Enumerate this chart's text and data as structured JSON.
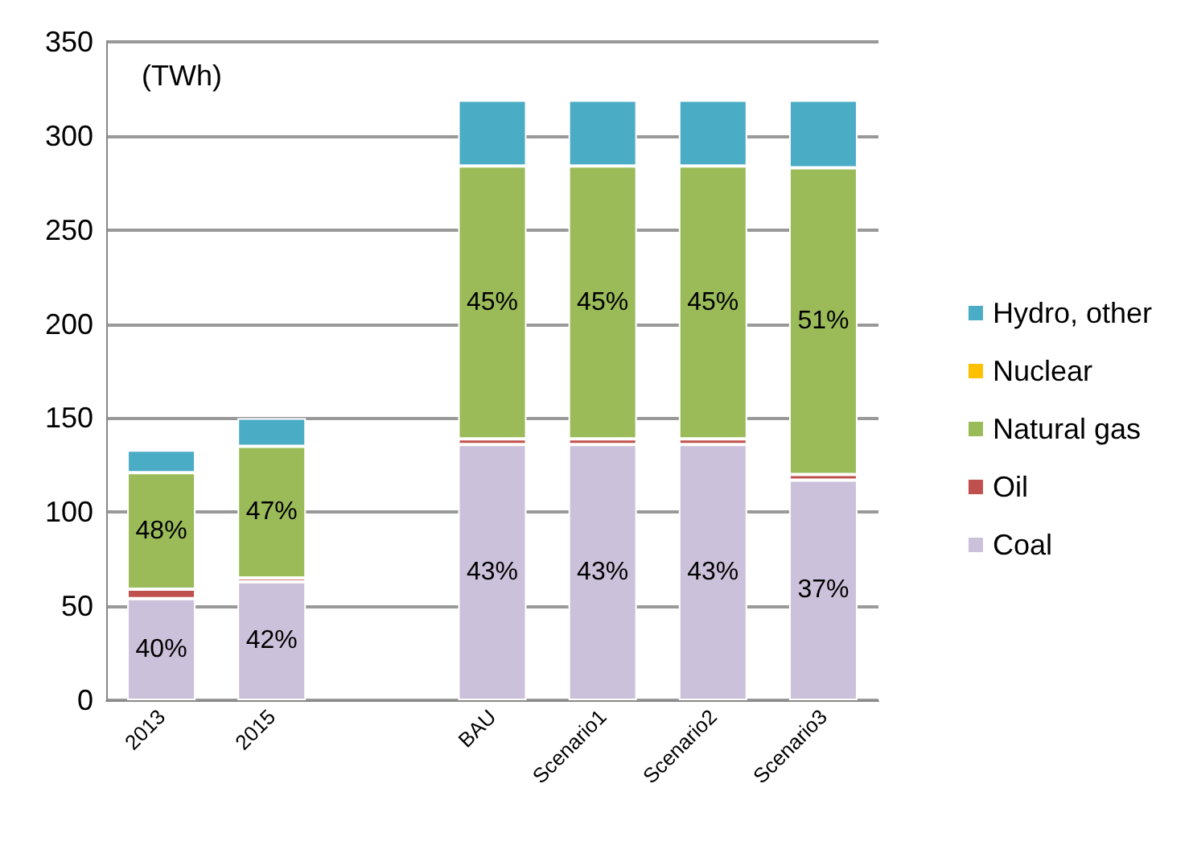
{
  "chart_data": {
    "type": "bar",
    "stacked": true,
    "annotations": [
      "(TWh)",
      "40%",
      "48%",
      "42%",
      "47%",
      "43%",
      "45%",
      "43%",
      "45%",
      "43%",
      "45%",
      "37%",
      "51%"
    ],
    "categories": [
      "2013",
      "2015",
      null,
      "BAU",
      "Scenario1",
      "Scenario2",
      "Scenario3"
    ],
    "ylim": [
      0,
      350
    ],
    "yticks": [
      0,
      50,
      100,
      150,
      200,
      250,
      300,
      350
    ],
    "grid": "y",
    "legend": "right",
    "series": [
      {
        "name": "Coal",
        "color": "#ccc1da",
        "values": [
          54,
          63,
          null,
          136,
          136,
          136,
          117
        ]
      },
      {
        "name": "Oil",
        "color": "#c0504d",
        "values": [
          5,
          2,
          null,
          3,
          3,
          3,
          3
        ]
      },
      {
        "name": "Natural gas",
        "color": "#9bbb59",
        "values": [
          62,
          70,
          null,
          145,
          145,
          145,
          163
        ]
      },
      {
        "name": "Nuclear",
        "color": "#ffc000",
        "values": [
          0,
          0,
          null,
          0,
          0,
          0,
          0
        ]
      },
      {
        "name": "Hydro, other",
        "color": "#4bacc6",
        "values": [
          12,
          15,
          null,
          35,
          35,
          35,
          36
        ]
      }
    ]
  }
}
